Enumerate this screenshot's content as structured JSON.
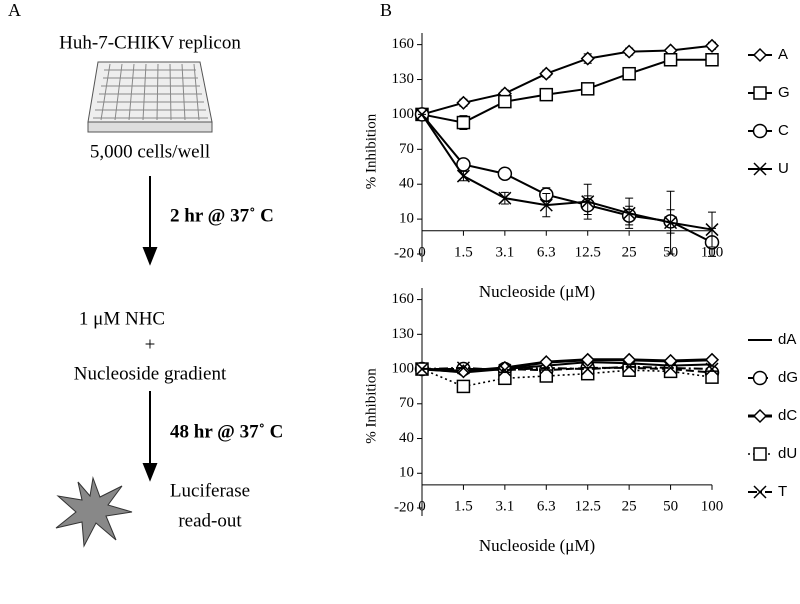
{
  "panel_labels": [
    "A",
    "B"
  ],
  "diagram": {
    "steps": [
      "Huh-7-CHIKV replicon",
      "5,000 cells/well",
      "1 μM NHC",
      "+",
      "Nucleoside gradient",
      "Luciferase",
      "read-out"
    ],
    "arrows": [
      "2 hr @ 37˚ C",
      "48 hr @ 37˚ C"
    ]
  },
  "chart_data": [
    {
      "type": "line",
      "y_label": "% Inhibition",
      "x_label": "Nucleoside (μM)",
      "categories": [
        "0",
        "1.5",
        "3.1",
        "6.3",
        "12.5",
        "25",
        "50",
        "100"
      ],
      "ylim": [
        -20,
        170
      ],
      "yticks": [
        -20,
        10,
        40,
        70,
        100,
        130,
        160
      ],
      "series": [
        {
          "name": "A",
          "color": "#000000",
          "marker": "diamond",
          "dash": "solid",
          "values": [
            100,
            110,
            118,
            135,
            148,
            154,
            155,
            159
          ],
          "errors": [
            0,
            3,
            3,
            3,
            4,
            3,
            2,
            3
          ]
        },
        {
          "name": "G",
          "color": "#000000",
          "marker": "square",
          "dash": "solid",
          "values": [
            100,
            93,
            111,
            117,
            122,
            135,
            147,
            147
          ],
          "errors": [
            0,
            6,
            5,
            3,
            4,
            5,
            5,
            5
          ]
        },
        {
          "name": "C",
          "color": "#000000",
          "marker": "circle",
          "dash": "solid",
          "values": [
            100,
            57,
            49,
            31,
            22,
            13,
            8,
            -10
          ],
          "errors": [
            0,
            4,
            3,
            6,
            8,
            8,
            10,
            12
          ]
        },
        {
          "name": "U",
          "color": "#000000",
          "marker": "x",
          "dash": "solid",
          "values": [
            100,
            47,
            28,
            22,
            25,
            15,
            7,
            1
          ],
          "errors": [
            0,
            4,
            5,
            10,
            15,
            13,
            27,
            15
          ]
        }
      ]
    },
    {
      "type": "line",
      "y_label": "% Inhibition",
      "x_label": "Nucleoside (μM)",
      "categories": [
        "0",
        "1.5",
        "3.1",
        "6.3",
        "12.5",
        "25",
        "50",
        "100"
      ],
      "ylim": [
        -20,
        170
      ],
      "yticks": [
        -20,
        10,
        40,
        70,
        100,
        130,
        160
      ],
      "series": [
        {
          "name": "dA",
          "color": "#000000",
          "marker": "none",
          "dash": "solid",
          "values": [
            100,
            97,
            100,
            103,
            106,
            105,
            103,
            104
          ]
        },
        {
          "name": "dG",
          "color": "#000000",
          "marker": "circle",
          "dash": "dashed",
          "values": [
            100,
            100,
            100,
            99,
            101,
            101,
            100,
            97
          ]
        },
        {
          "name": "dC",
          "color": "#000000",
          "marker": "diamond",
          "dash": "thick",
          "values": [
            100,
            98,
            101,
            106,
            108,
            108,
            107,
            108
          ]
        },
        {
          "name": "dU",
          "color": "#000000",
          "marker": "square",
          "dash": "dotted",
          "values": [
            100,
            85,
            92,
            94,
            96,
            99,
            98,
            93
          ]
        },
        {
          "name": "T",
          "color": "#000000",
          "marker": "x",
          "dash": "dashdot",
          "values": [
            100,
            101,
            99,
            101,
            100,
            102,
            101,
            100
          ]
        }
      ]
    }
  ]
}
